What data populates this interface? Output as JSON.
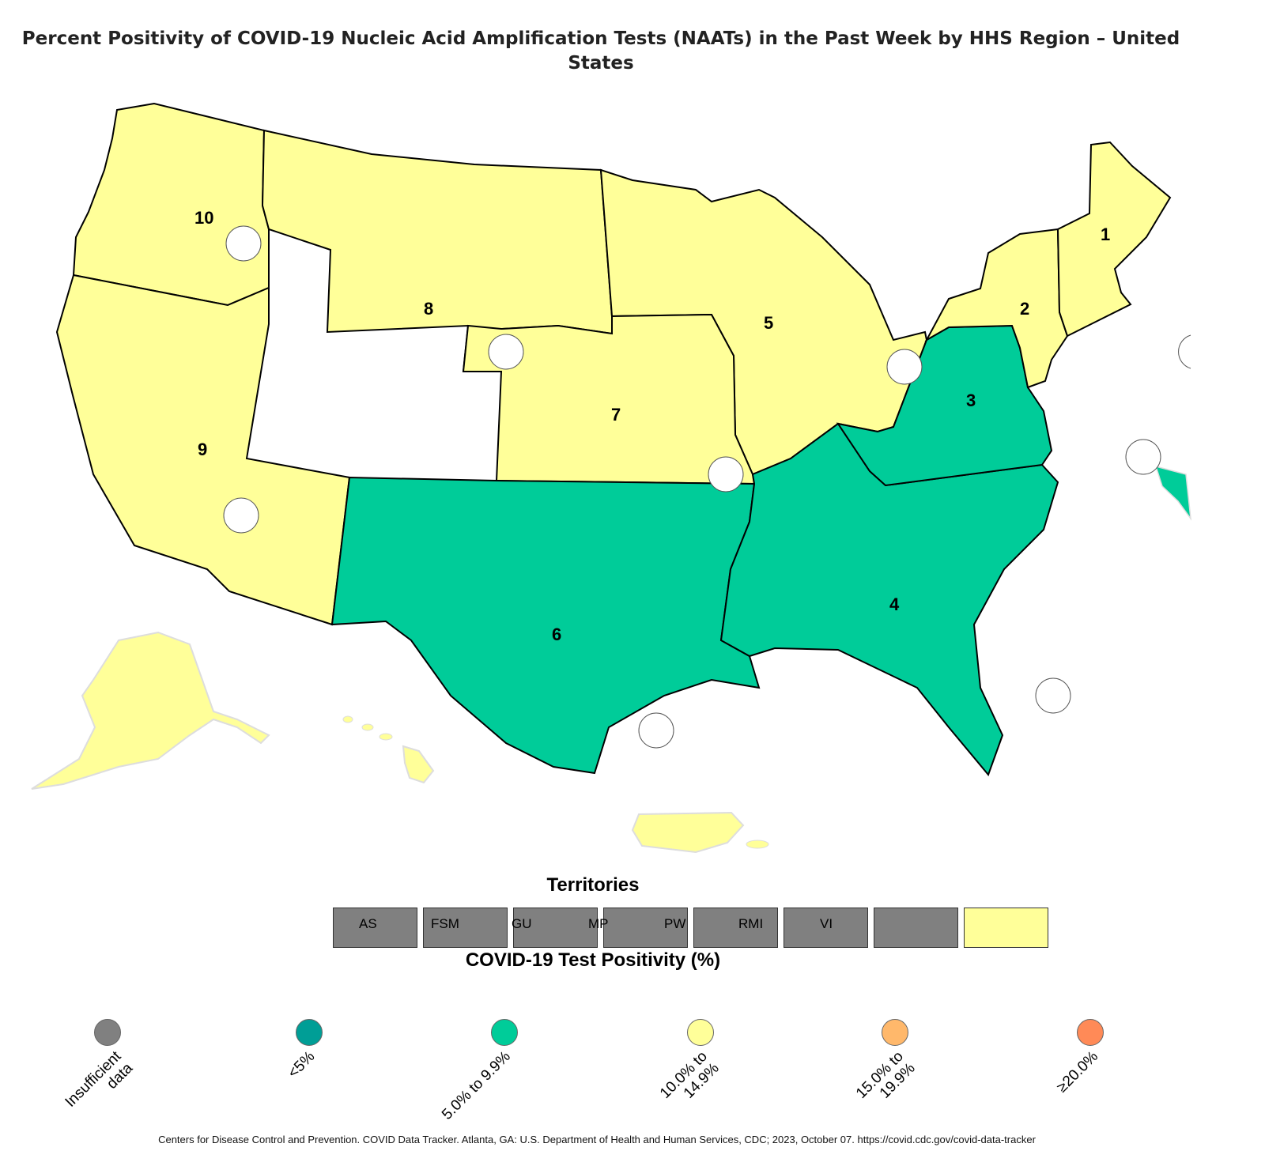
{
  "title": "Percent Positivity of COVID-19 Nucleic Acid Amplification Tests (NAATs) in the Past Week by HHS Region – United States",
  "colors": {
    "insufficient": "#808080",
    "lt5": "#009e96",
    "p5_9": "#00cc99",
    "p10_14": "#ffff99",
    "p15_19": "#ffb86b",
    "ge20": "#ff8a57",
    "border": "#000000",
    "state_line": "#dddddd"
  },
  "regions": [
    {
      "label": "1",
      "category": "10.0% to 14.9%"
    },
    {
      "label": "2",
      "category": "10.0% to 14.9%"
    },
    {
      "label": "3",
      "category": "5.0% to 9.9%"
    },
    {
      "label": "4",
      "category": "5.0% to 9.9%"
    },
    {
      "label": "5",
      "category": "10.0% to 14.9%"
    },
    {
      "label": "6",
      "category": "5.0% to 9.9%"
    },
    {
      "label": "7",
      "category": "10.0% to 14.9%"
    },
    {
      "label": "8",
      "category": "10.0% to 14.9%"
    },
    {
      "label": "9",
      "category": "10.0% to 14.9%"
    },
    {
      "label": "10",
      "category": "10.0% to 14.9%"
    }
  ],
  "territories": {
    "title": "Territories",
    "items": [
      {
        "label": "AS",
        "category": "Insufficient data"
      },
      {
        "label": "FSM",
        "category": "Insufficient data"
      },
      {
        "label": "GU",
        "category": "Insufficient data"
      },
      {
        "label": "MP",
        "category": "Insufficient data"
      },
      {
        "label": "PW",
        "category": "Insufficient data"
      },
      {
        "label": "RMI",
        "category": "Insufficient data"
      },
      {
        "label": "VI",
        "category": "Insufficient data"
      },
      {
        "label": "",
        "category": "10.0% to 14.9%"
      }
    ]
  },
  "legend": {
    "title": "COVID-19 Test Positivity (%)",
    "items": [
      {
        "line1": "Insufficient",
        "line2": "data",
        "color": "#808080"
      },
      {
        "line1": "<5%",
        "line2": "",
        "color": "#009e96"
      },
      {
        "line1": "5.0% to 9.9%",
        "line2": "",
        "color": "#00cc99"
      },
      {
        "line1": "10.0% to",
        "line2": "14.9%",
        "color": "#ffff99"
      },
      {
        "line1": "15.0% to",
        "line2": "19.9%",
        "color": "#ffb86b"
      },
      {
        "line1": "≥20.0%",
        "line2": "",
        "color": "#ff8a57"
      }
    ]
  },
  "footer": "Centers for Disease Control and Prevention. COVID Data Tracker. Atlanta, GA: U.S. Department of Health and Human Services, CDC; 2023, October 07. https://covid.cdc.gov/covid-data-tracker"
}
